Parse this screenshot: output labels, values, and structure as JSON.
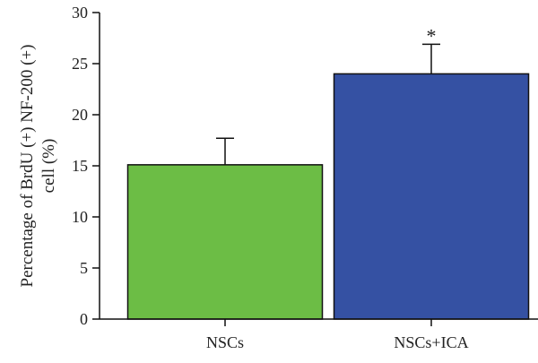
{
  "chart_data": {
    "type": "bar",
    "categories": [
      "NSCs",
      "NSCs+ICA"
    ],
    "values": [
      15.1,
      24.0
    ],
    "errors": [
      2.6,
      2.9
    ],
    "colors": [
      "#6cbd45",
      "#3551a3"
    ],
    "ylabel_lines": [
      "Percentage of BrdU (+) NF-200 (+)",
      "cell (%)"
    ],
    "xlabel": "",
    "title": "",
    "ylim": [
      0,
      30
    ],
    "yticks": [
      0,
      5,
      10,
      15,
      20,
      25,
      30
    ],
    "annotations": [
      "",
      "*"
    ],
    "grid": false,
    "legend": "none"
  }
}
